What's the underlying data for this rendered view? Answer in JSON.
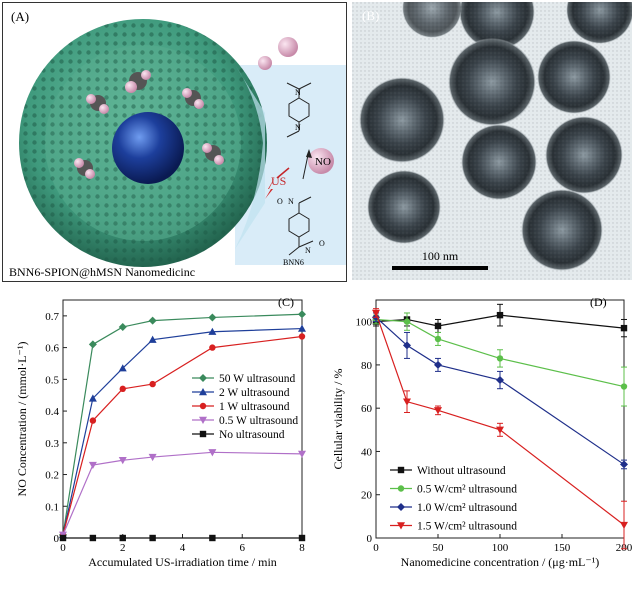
{
  "panels": {
    "a": {
      "label": "(A)",
      "caption": "BNN6-SPION@hMSN Nanomedicinc",
      "us_label": "US",
      "no_label": "NO",
      "bnn6_label": "BNN6",
      "atom_n1": "N",
      "atom_n2": "N",
      "atom_o1": "O",
      "atom_n3": "N",
      "atom_n4": "N",
      "atom_o2": "O",
      "colors": {
        "shell": "#3f9a7d",
        "core": "#1d3f9c",
        "ball": "#e8b4cf"
      }
    },
    "b": {
      "label": "(B)",
      "scale_bar": "100 nm"
    },
    "c": {
      "label": "(C)"
    },
    "d": {
      "label": "(D)"
    }
  },
  "chart_data": [
    {
      "type": "line",
      "title": "",
      "xlabel": "Accumulated US-irradiation time / min",
      "ylabel": "NO Concentration / (mmol·L⁻¹)",
      "xlim": [
        0,
        8
      ],
      "ylim": [
        0,
        0.75
      ],
      "xticks": [
        0,
        2,
        4,
        6,
        8
      ],
      "yticks": [
        0,
        0.1,
        0.2,
        0.3,
        0.4,
        0.5,
        0.6,
        0.7
      ],
      "legend_position": "right",
      "grid": false,
      "series": [
        {
          "name": "50 W ultrasound",
          "color": "#3a8a5c",
          "marker": "diamond",
          "x": [
            0,
            1,
            2,
            3,
            5,
            8
          ],
          "y": [
            0.01,
            0.61,
            0.665,
            0.685,
            0.695,
            0.705
          ]
        },
        {
          "name": "2 W ultrasound",
          "color": "#1f3f9a",
          "marker": "triangle",
          "x": [
            0,
            1,
            2,
            3,
            5,
            8
          ],
          "y": [
            0.01,
            0.44,
            0.535,
            0.625,
            0.65,
            0.66
          ]
        },
        {
          "name": "1 W ultrasound",
          "color": "#d82020",
          "marker": "circle",
          "x": [
            0,
            1,
            2,
            3,
            5,
            8
          ],
          "y": [
            0.01,
            0.37,
            0.47,
            0.485,
            0.6,
            0.635
          ]
        },
        {
          "name": "0.5 W ultrasound",
          "color": "#b070c8",
          "marker": "triangle-down",
          "x": [
            0,
            1,
            2,
            3,
            5,
            8
          ],
          "y": [
            0.01,
            0.23,
            0.245,
            0.255,
            0.27,
            0.265
          ]
        },
        {
          "name": "No ultrasound",
          "color": "#111111",
          "marker": "square",
          "x": [
            0,
            1,
            2,
            3,
            5,
            8
          ],
          "y": [
            0.0,
            0.0,
            0.0,
            0.0,
            0.0,
            0.0
          ]
        }
      ]
    },
    {
      "type": "line",
      "title": "",
      "xlabel": "Nanomedicine concentration / (μg·mL⁻¹)",
      "ylabel": "Cellular viability / %",
      "xlim": [
        0,
        200
      ],
      "ylim": [
        0,
        110
      ],
      "xticks": [
        0,
        50,
        100,
        150,
        200
      ],
      "yticks": [
        0,
        20,
        40,
        60,
        80,
        100
      ],
      "legend_position": "bottom-left",
      "grid": false,
      "series": [
        {
          "name": "Without ultrasound",
          "color": "#111111",
          "marker": "square",
          "x": [
            0,
            25,
            50,
            100,
            200
          ],
          "y": [
            100,
            101,
            98,
            103,
            97
          ],
          "err": [
            2,
            3,
            3,
            5,
            4
          ]
        },
        {
          "name": "0.5 W/cm² ultrasound",
          "color": "#5cbf4a",
          "marker": "circle",
          "x": [
            0,
            25,
            50,
            100,
            200
          ],
          "y": [
            101,
            100,
            92,
            83,
            70
          ],
          "err": [
            2,
            4,
            3,
            4,
            9
          ]
        },
        {
          "name": "1.0 W/cm² ultrasound",
          "color": "#1f2f8a",
          "marker": "diamond",
          "x": [
            0,
            25,
            50,
            100,
            200
          ],
          "y": [
            102,
            89,
            80,
            73,
            34
          ],
          "err": [
            2,
            6,
            3,
            4,
            2
          ]
        },
        {
          "name": "1.5 W/cm² ultrasound",
          "color": "#d82020",
          "marker": "triangle-down",
          "x": [
            0,
            25,
            50,
            100,
            200
          ],
          "y": [
            104,
            63,
            59,
            50,
            6
          ],
          "err": [
            2,
            5,
            2,
            3,
            11
          ]
        }
      ]
    }
  ]
}
